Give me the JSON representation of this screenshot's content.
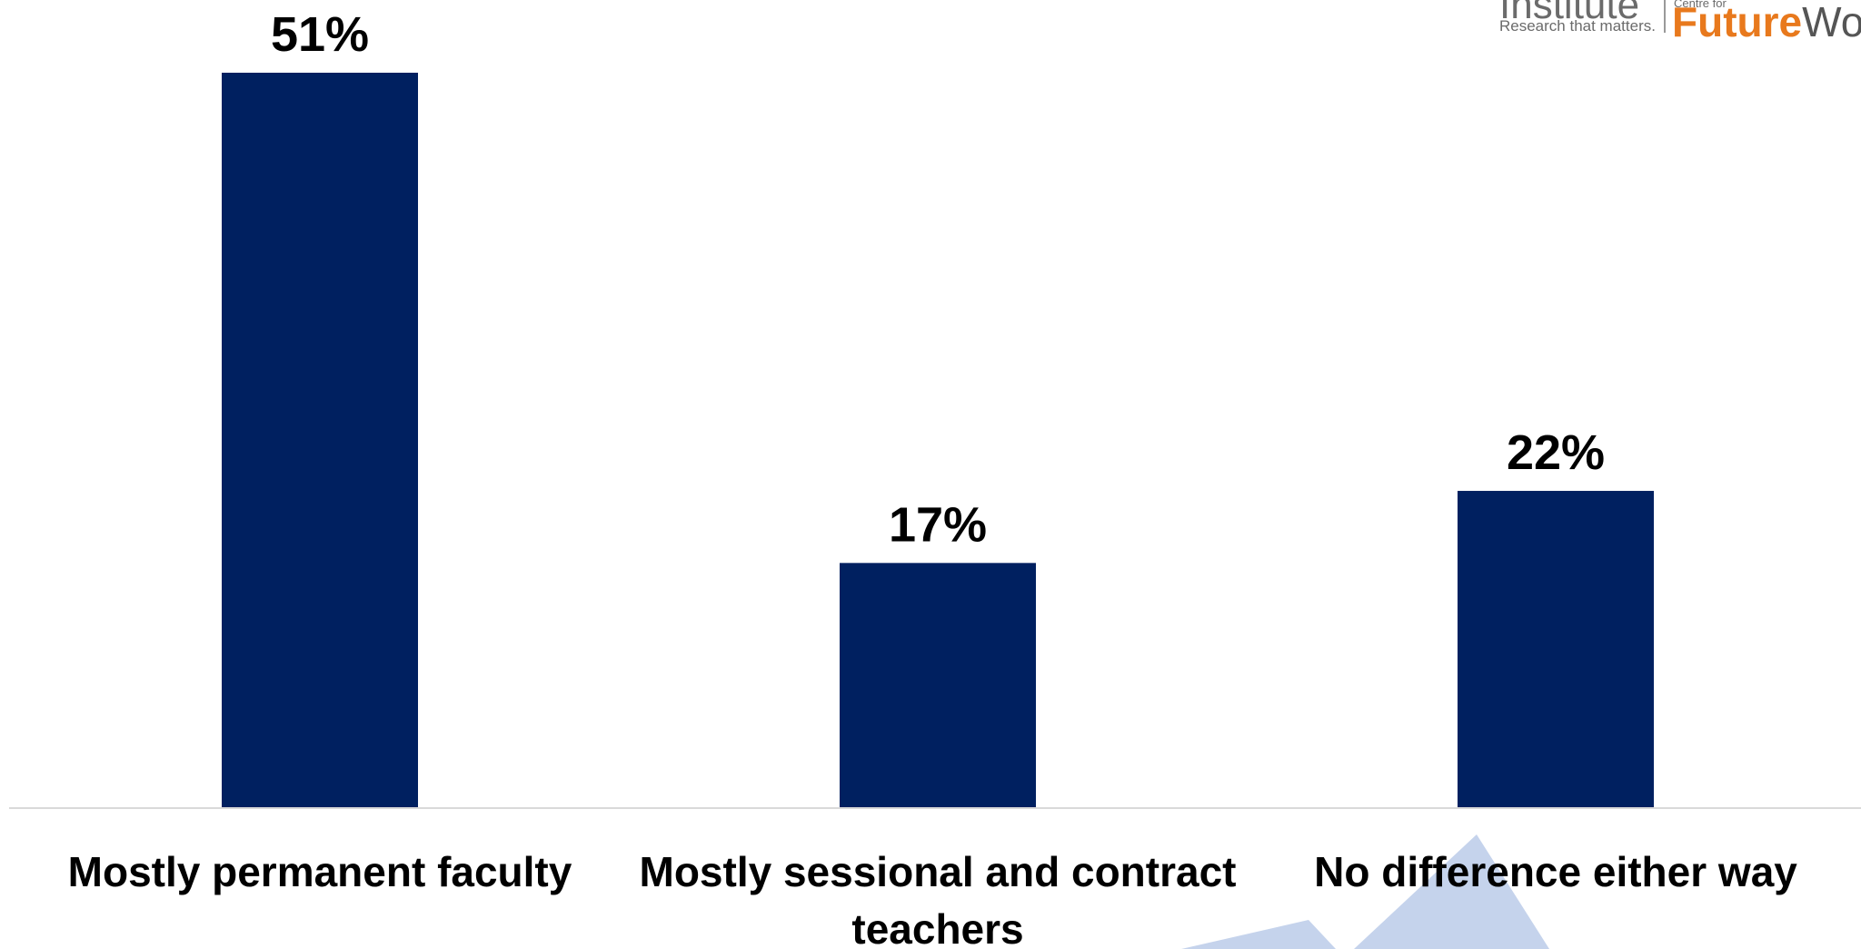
{
  "chart_data": {
    "type": "bar",
    "categories": [
      [
        "Mostly permanent faculty"
      ],
      [
        "Mostly sessional and contract",
        "teachers"
      ],
      [
        "No difference either way"
      ]
    ],
    "values": [
      51,
      17,
      22
    ],
    "value_labels": [
      "51%",
      "17%",
      "22%"
    ],
    "ylim": [
      0,
      51
    ],
    "bar_color": "#002060",
    "title": "",
    "xlabel": "",
    "ylabel": ""
  },
  "logo": {
    "institute_text": "Institute",
    "tagline": "Research that matters.",
    "centre_text": "Centre for",
    "future_text": "Future",
    "work_text": "Work"
  },
  "colors": {
    "bar": "#002060",
    "axis": "#d9d9d9",
    "watermark": "#c5d3ec",
    "logo_orange": "#e8791d"
  }
}
